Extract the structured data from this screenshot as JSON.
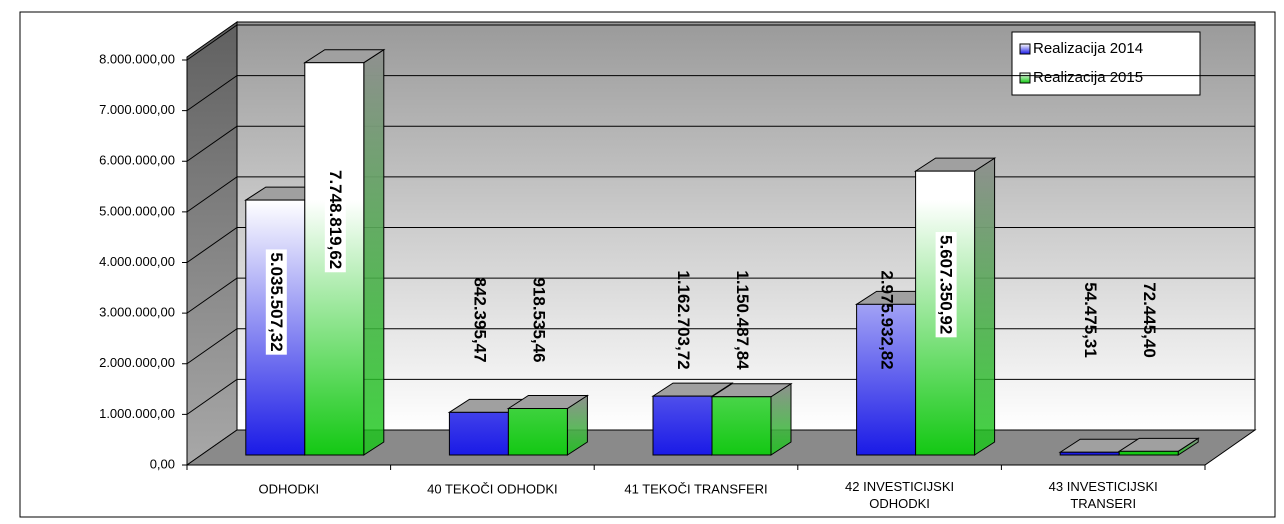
{
  "chart_data": {
    "type": "bar3d",
    "categories": [
      "ODHODKI",
      "40 TEKOČI ODHODKI",
      "41 TEKOČI TRANSFERI",
      "42 INVESTICIJSKI ODHODKI",
      "43 INVESTICIJSKI TRANSERI"
    ],
    "series": [
      {
        "name": "Realizacija 2014",
        "color": "#1a1ae6",
        "values": [
          5035507.32,
          842395.47,
          1162703.72,
          2975932.82,
          54475.31
        ],
        "value_labels": [
          "5.035.507,32",
          "842.395,47",
          "1.162.703,72",
          "2.975.932,82",
          "54.475,31"
        ]
      },
      {
        "name": "Realizacija 2015",
        "color": "#13c813",
        "values": [
          7748819.62,
          918535.46,
          1150487.84,
          5607350.92,
          72445.4
        ],
        "value_labels": [
          "7.748.819,62",
          "918.535,46",
          "1.150.487,84",
          "5.607.350,92",
          "72.445,40"
        ]
      }
    ],
    "ylim": [
      0,
      8000000
    ],
    "yticks": [
      {
        "value": 0,
        "label": "0,00"
      },
      {
        "value": 1000000,
        "label": "1.000.000,00"
      },
      {
        "value": 2000000,
        "label": "2.000.000,00"
      },
      {
        "value": 3000000,
        "label": "3.000.000,00"
      },
      {
        "value": 4000000,
        "label": "4.000.000,00"
      },
      {
        "value": 5000000,
        "label": "5.000.000,00"
      },
      {
        "value": 6000000,
        "label": "6.000.000,00"
      },
      {
        "value": 7000000,
        "label": "7.000.000,00"
      },
      {
        "value": 8000000,
        "label": "8.000.000,00"
      }
    ],
    "grid": true,
    "legend": "top-right"
  }
}
